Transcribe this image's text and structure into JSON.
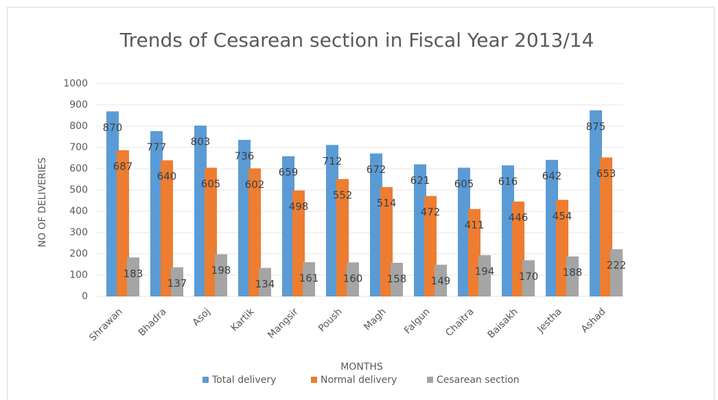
{
  "chart_data": {
    "type": "bar",
    "title": "Trends of Cesarean section in Fiscal Year 2013/14",
    "x_label": "MONTHS",
    "y_label": "NO OF DELIVERIES",
    "categories": [
      "Shrawan",
      "Bhadra",
      "Asoj",
      "Kartik",
      "Mangsir",
      "Poush",
      "Magh",
      "Falgun",
      "Chaitra",
      "Baisakh",
      "Jestha",
      "Ashad"
    ],
    "series": [
      {
        "name": "Total delivery",
        "color": "#5b9bd5",
        "values": [
          870,
          777,
          803,
          736,
          659,
          712,
          672,
          621,
          605,
          616,
          642,
          875
        ]
      },
      {
        "name": "Normal delivery",
        "color": "#ed7d31",
        "values": [
          687,
          640,
          605,
          602,
          498,
          552,
          514,
          472,
          411,
          446,
          454,
          653
        ]
      },
      {
        "name": "Cesarean section",
        "color": "#a5a5a5",
        "values": [
          183,
          137,
          198,
          134,
          161,
          160,
          158,
          149,
          194,
          170,
          188,
          222
        ]
      }
    ],
    "ylim": [
      0,
      1000
    ],
    "yticks": [
      0,
      100,
      200,
      300,
      400,
      500,
      600,
      700,
      800,
      900,
      1000
    ],
    "grid": true,
    "legend": "bottom"
  }
}
